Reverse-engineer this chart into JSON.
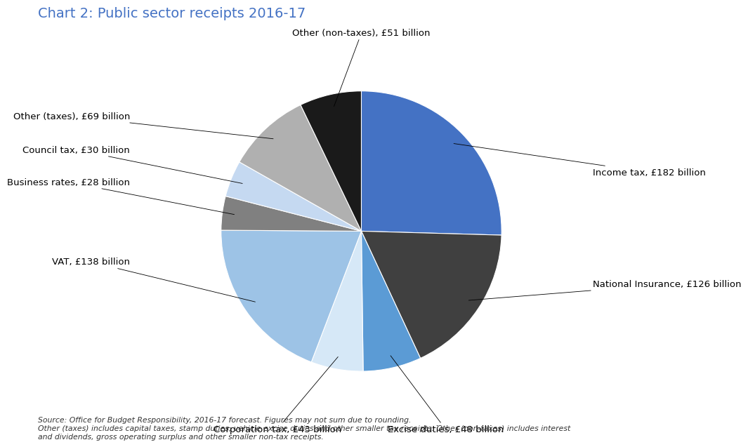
{
  "title": "Chart 2: Public sector receipts 2016-17",
  "title_color": "#4472c4",
  "title_fontsize": 14,
  "slices": [
    {
      "label": "Income tax, £182 billion",
      "value": 182,
      "color": "#4472c4"
    },
    {
      "label": "National Insurance, £126 billion",
      "value": 126,
      "color": "#404040"
    },
    {
      "label": "Excise duties, £48 billion",
      "value": 48,
      "color": "#5b9bd5"
    },
    {
      "label": "Corporation tax, £43 billion",
      "value": 43,
      "color": "#d6e8f7"
    },
    {
      "label": "VAT, £138 billion",
      "value": 138,
      "color": "#9dc3e6"
    },
    {
      "label": "Business rates, £28 billion",
      "value": 28,
      "color": "#808080"
    },
    {
      "label": "Council tax, £30 billion",
      "value": 30,
      "color": "#c5d9f1"
    },
    {
      "label": "Other (taxes), £69 billion",
      "value": 69,
      "color": "#b0b0b0"
    },
    {
      "label": "Other (non-taxes), £51 billion",
      "value": 51,
      "color": "#1a1a1a"
    }
  ],
  "footnote_line1": "Source: Office for Budget Responsibility, 2016-17 forecast. Figures may not sum due to rounding.",
  "footnote_line2": "Other (taxes) includes capital taxes, stamp duties, vehicle excise duties and other smaller tax receipts. Other (non-taxes) includes interest",
  "footnote_line3": "and dividends, gross operating surplus and other smaller non-tax receipts.",
  "background_color": "#ffffff"
}
